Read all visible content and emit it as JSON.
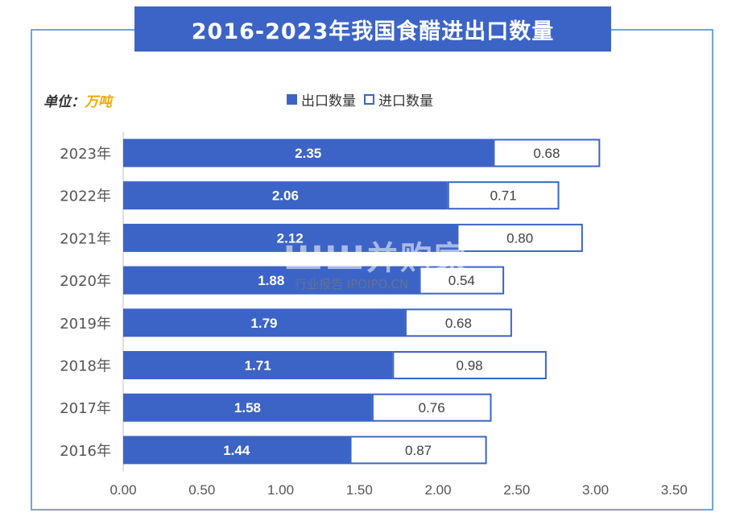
{
  "header": {
    "title": "2016-2023年我国食醋进出口数量"
  },
  "unit": {
    "label": "单位：",
    "value": "万吨"
  },
  "legend": {
    "export_label": "出口数量",
    "import_label": "进口数量"
  },
  "watermark": {
    "main": "ШШ并购家",
    "sub": "行业报告 IPOIPO.CN"
  },
  "colors": {
    "export": "#3c64c6",
    "import": "#ffffff",
    "import_border": "#3c64c6",
    "frame": "#6aa7dc"
  },
  "chart_data": {
    "type": "bar",
    "orientation": "horizontal",
    "stacked": true,
    "categories": [
      "2023年",
      "2022年",
      "2021年",
      "2020年",
      "2019年",
      "2018年",
      "2017年",
      "2016年"
    ],
    "series": [
      {
        "name": "出口数量",
        "values": [
          2.35,
          2.06,
          2.12,
          1.88,
          1.79,
          1.71,
          1.58,
          1.44
        ]
      },
      {
        "name": "进口数量",
        "values": [
          0.68,
          0.71,
          0.8,
          0.54,
          0.68,
          0.98,
          0.76,
          0.87
        ]
      }
    ],
    "xticks": [
      "0.00",
      "0.50",
      "1.00",
      "1.50",
      "2.00",
      "2.50",
      "3.00",
      "3.50"
    ],
    "xlim": [
      0,
      3.5
    ],
    "legend_position": "top-center",
    "grid": false
  }
}
